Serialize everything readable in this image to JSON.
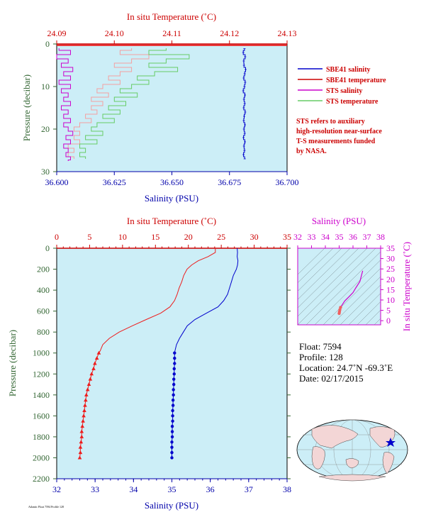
{
  "colors": {
    "background": "#cceef7",
    "salinity": "#0000cc",
    "temperature": "#ee1c1c",
    "sts_salinity": "#cc00cc",
    "sts_temperature": "#66cc66",
    "axis_red": "#cc0000",
    "axis_blue": "#0000aa",
    "axis_magenta": "#cc00cc",
    "axis_green": "#336633"
  },
  "chart_data": [
    {
      "type": "line",
      "top_xlabel": "In situ Temperature (˚C)",
      "top_ticks": [
        "24.09",
        "24.10",
        "24.11",
        "24.12",
        "24.13"
      ],
      "top_range": [
        24.09,
        24.13
      ],
      "bottom_xlabel": "Salinity (PSU)",
      "bottom_ticks": [
        "36.600",
        "36.625",
        "36.650",
        "36.675",
        "36.700"
      ],
      "bottom_range": [
        36.6,
        36.7
      ],
      "ylabel": "Pressure (decibar)",
      "y_ticks": [
        "0",
        "10",
        "20",
        "30"
      ],
      "ylim": [
        0,
        30
      ],
      "legend": [
        "SBE41 salinity",
        "SBE41 temperature",
        "STS salinity",
        "STS temperature"
      ],
      "note": [
        "STS refers to auxiliary",
        "high-resolution near-surface",
        "T-S measurements funded",
        "by NASA."
      ],
      "series": [
        {
          "name": "SBE41 salinity",
          "axis": "salinity",
          "pressure": [
            1.1,
            2,
            3,
            4,
            5,
            6,
            7,
            8,
            9,
            10,
            11,
            12,
            13,
            14,
            15,
            16,
            17,
            18,
            19,
            20,
            21,
            22,
            23,
            24,
            25,
            26,
            27
          ],
          "values": [
            36.6815,
            36.681,
            36.6818,
            36.6812,
            36.6813,
            36.682,
            36.6816,
            36.6812,
            36.6818,
            36.6815,
            36.681,
            36.6817,
            36.6813,
            36.6816,
            36.6812,
            36.6818,
            36.6814,
            36.6812,
            36.6817,
            36.6813,
            36.6816,
            36.6811,
            36.6817,
            36.6813,
            36.6815,
            36.6811,
            36.6816
          ]
        },
        {
          "name": "SBE41 temperature",
          "axis": "temperature",
          "pressure": [
            0.3,
            0.3
          ],
          "values": [
            24.09,
            24.13
          ]
        },
        {
          "name": "STS salinity",
          "axis": "salinity",
          "pressure": [
            1,
            2,
            3,
            4,
            5,
            6,
            7,
            8,
            9,
            10,
            11,
            12,
            13,
            14,
            15,
            16,
            17,
            18,
            19,
            20,
            21,
            22,
            23,
            24,
            25,
            26,
            27,
            27.5
          ],
          "values": [
            36.601,
            36.606,
            36.6,
            36.605,
            36.602,
            36.607,
            36.603,
            36.606,
            36.601,
            36.606,
            36.602,
            36.605,
            36.603,
            36.606,
            36.602,
            36.605,
            36.603,
            36.606,
            36.603,
            36.605,
            36.607,
            36.604,
            36.606,
            36.603,
            36.605,
            36.604,
            36.606,
            36.605
          ]
        },
        {
          "name": "STS temperature",
          "axis": "temperature",
          "pressure": [
            1,
            2,
            3,
            4,
            5,
            6,
            7,
            8,
            9,
            10,
            11,
            12,
            13,
            14,
            15,
            16,
            17,
            18,
            19,
            20,
            21,
            22,
            23,
            24,
            25,
            26,
            27
          ],
          "values": [
            24.109,
            24.106,
            24.113,
            24.109,
            24.106,
            24.111,
            24.107,
            24.104,
            24.106,
            24.103,
            24.101,
            24.104,
            24.1,
            24.102,
            24.099,
            24.101,
            24.098,
            24.1,
            24.097,
            24.096,
            24.098,
            24.095,
            24.097,
            24.094,
            24.095,
            24.094,
            24.095
          ]
        },
        {
          "name": "STS temperature (pale)",
          "axis": "temperature",
          "pressure": [
            1,
            2,
            3,
            4,
            5,
            6,
            7,
            8,
            9,
            10,
            11,
            12,
            13,
            14,
            15,
            16,
            17,
            18,
            19,
            20,
            21,
            22,
            23,
            24,
            25,
            26,
            27
          ],
          "values": [
            24.103,
            24.101,
            24.106,
            24.103,
            24.1,
            24.103,
            24.101,
            24.099,
            24.101,
            24.098,
            24.097,
            24.099,
            24.096,
            24.098,
            24.096,
            24.097,
            24.095,
            24.096,
            24.094,
            24.093,
            24.094,
            24.093,
            24.094,
            24.092,
            24.093,
            24.092,
            24.093
          ]
        }
      ]
    },
    {
      "type": "line",
      "top_xlabel": "In situ Temperature (˚C)",
      "top_ticks": [
        "0",
        "5",
        "10",
        "15",
        "20",
        "25",
        "30",
        "35"
      ],
      "top_range": [
        0,
        35
      ],
      "bottom_xlabel": "Salinity (PSU)",
      "bottom_ticks": [
        "32",
        "33",
        "34",
        "35",
        "36",
        "37",
        "38"
      ],
      "bottom_range": [
        32,
        38
      ],
      "ylabel": "Pressure (decibar)",
      "y_ticks": [
        "0",
        "200",
        "400",
        "600",
        "800",
        "1000",
        "1200",
        "1400",
        "1600",
        "1800",
        "2000",
        "2200"
      ],
      "ylim": [
        0,
        2200
      ],
      "series": [
        {
          "name": "Salinity",
          "axis": "salinity",
          "pressure": [
            0,
            40,
            80,
            120,
            160,
            200,
            260,
            320,
            380,
            440,
            500,
            560,
            620,
            680,
            740,
            800,
            860,
            920,
            980,
            1000,
            1050,
            1100,
            1150,
            1200,
            1250,
            1300,
            1350,
            1400,
            1450,
            1500,
            1550,
            1600,
            1650,
            1700,
            1750,
            1800,
            1850,
            1900,
            1950,
            2000
          ],
          "values": [
            36.7,
            36.71,
            36.7,
            36.72,
            36.71,
            36.68,
            36.6,
            36.55,
            36.5,
            36.45,
            36.35,
            36.2,
            35.9,
            35.6,
            35.4,
            35.3,
            35.2,
            35.12,
            35.08,
            35.07,
            35.07,
            35.07,
            35.06,
            35.06,
            35.05,
            35.05,
            35.04,
            35.04,
            35.03,
            35.03,
            35.02,
            35.02,
            35.02,
            35.01,
            35.01,
            35.01,
            35.0,
            35.0,
            35.0,
            35.0
          ]
        },
        {
          "name": "Temperature",
          "axis": "temperature",
          "pressure": [
            0,
            40,
            80,
            120,
            160,
            200,
            260,
            320,
            380,
            440,
            500,
            560,
            620,
            680,
            740,
            800,
            860,
            920,
            980,
            1000,
            1050,
            1100,
            1150,
            1200,
            1250,
            1300,
            1350,
            1400,
            1450,
            1500,
            1550,
            1600,
            1650,
            1700,
            1750,
            1800,
            1850,
            1900,
            1950,
            2000
          ],
          "values": [
            24.1,
            24.1,
            23.0,
            21.5,
            20.5,
            19.8,
            19.3,
            19.0,
            18.6,
            18.3,
            17.9,
            17.2,
            15.8,
            13.6,
            11.5,
            9.5,
            8.0,
            7.0,
            6.6,
            6.4,
            6.1,
            5.8,
            5.6,
            5.3,
            5.1,
            4.9,
            4.7,
            4.5,
            4.4,
            4.3,
            4.2,
            4.1,
            4.0,
            3.9,
            3.8,
            3.8,
            3.7,
            3.6,
            3.6,
            3.5
          ]
        }
      ]
    },
    {
      "type": "scatter",
      "top_xlabel": "Salinity (PSU)",
      "top_ticks": [
        "32",
        "33",
        "34",
        "35",
        "36",
        "37",
        "38"
      ],
      "x_range": [
        32,
        38
      ],
      "ylabel": "In situ Temperature (˚C)",
      "y_ticks": [
        "0",
        "5",
        "10",
        "15",
        "20",
        "25",
        "30",
        "35"
      ],
      "ylim": [
        -2,
        35
      ],
      "series": [
        {
          "name": "T-S",
          "salinity": [
            35.0,
            35.02,
            35.05,
            35.1,
            35.2,
            35.4,
            35.7,
            36.0,
            36.2,
            36.4,
            36.5,
            36.6,
            36.7
          ],
          "temperature": [
            3.5,
            4.3,
            5.3,
            6.4,
            7.5,
            9.5,
            11.5,
            13.6,
            15.8,
            17.9,
            19.0,
            21.5,
            24.1
          ]
        }
      ]
    }
  ],
  "info": {
    "float": "Float: 7594",
    "profile": "Profile: 128",
    "location": "Location: 24.7˚N  -69.3˚E",
    "date": "Date: 02/17/2015"
  },
  "footer": "Atlantic Float 7594 Profile 128"
}
